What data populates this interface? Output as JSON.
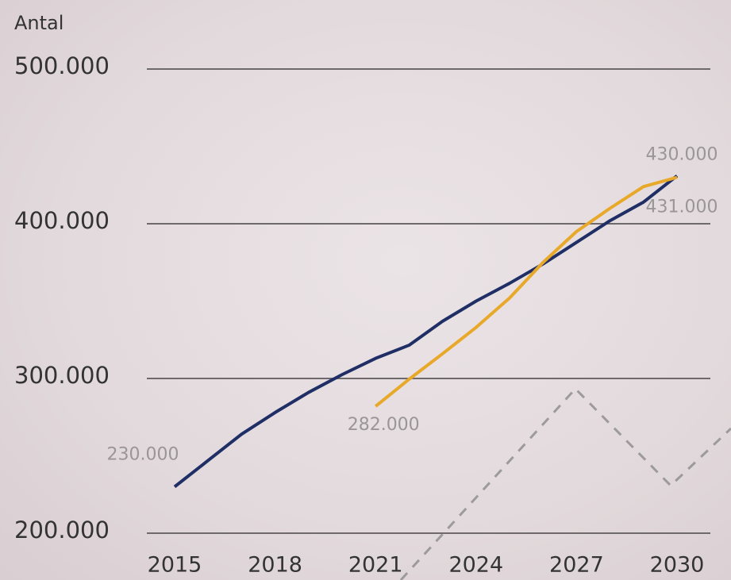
{
  "chart_data": {
    "type": "line",
    "y_axis_label": "Antal",
    "x": [
      2015,
      2016,
      2017,
      2018,
      2019,
      2020,
      2021,
      2022,
      2023,
      2024,
      2025,
      2026,
      2027,
      2028,
      2029,
      2030
    ],
    "xlim": [
      2015,
      2030
    ],
    "xticks": [
      2015,
      2018,
      2021,
      2024,
      2027,
      2030
    ],
    "ylim": [
      200000,
      500000
    ],
    "yticks": [
      {
        "value": 200000,
        "label": "200.000"
      },
      {
        "value": 300000,
        "label": "300.000"
      },
      {
        "value": 400000,
        "label": "400.000"
      },
      {
        "value": 500000,
        "label": "500.000"
      }
    ],
    "grid": true,
    "series": [
      {
        "color": "#1f2f66",
        "values": [
          230000,
          247000,
          264000,
          278000,
          291000,
          302500,
          313000,
          321500,
          337000,
          350000,
          361500,
          374000,
          388000,
          402000,
          414000,
          431000
        ],
        "value_labels": [
          "230.000",
          null,
          null,
          null,
          null,
          null,
          null,
          null,
          null,
          null,
          null,
          null,
          null,
          null,
          null,
          "431.000"
        ]
      },
      {
        "color": "#e8a92a",
        "values": [
          null,
          null,
          null,
          null,
          null,
          null,
          282000,
          299500,
          316000,
          333000,
          352000,
          375000,
          395000,
          410000,
          424000,
          430000
        ],
        "value_labels": [
          null,
          null,
          null,
          null,
          null,
          null,
          "282.000",
          null,
          null,
          null,
          null,
          null,
          null,
          null,
          null,
          "430.000"
        ]
      }
    ]
  }
}
